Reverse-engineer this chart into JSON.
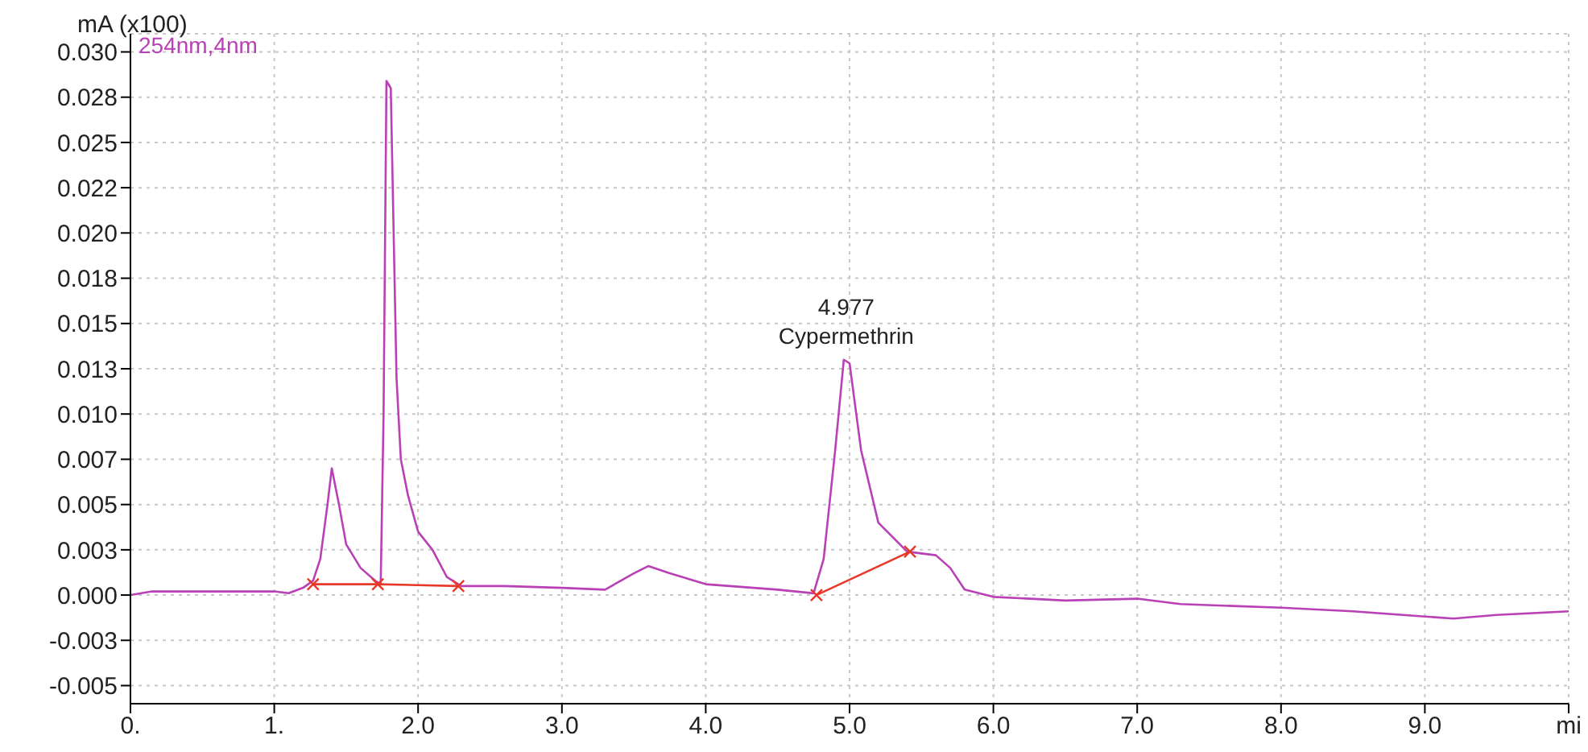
{
  "chart_data": {
    "type": "line",
    "ylabel": "mA (x100)",
    "annotations": [
      {
        "text": "4.977",
        "x": 4.977,
        "y": 0.013
      },
      {
        "text": "Cypermethrin",
        "x": 4.977,
        "y": 0.013
      }
    ],
    "xlim": [
      0,
      10
    ],
    "xticks": [
      {
        "value": 0,
        "label": "0."
      },
      {
        "value": 1,
        "label": "1."
      },
      {
        "value": 2,
        "label": "2.0"
      },
      {
        "value": 3,
        "label": "3.0"
      },
      {
        "value": 4,
        "label": "4.0"
      },
      {
        "value": 5,
        "label": "5.0"
      },
      {
        "value": 6,
        "label": "6.0"
      },
      {
        "value": 7,
        "label": "7.0"
      },
      {
        "value": 8,
        "label": "8.0"
      },
      {
        "value": 9,
        "label": "9.0"
      },
      {
        "value": 10,
        "label": "mi"
      }
    ],
    "ylim": [
      -0.006,
      0.031
    ],
    "yticks": [
      {
        "value": -0.005,
        "label": "-0.005"
      },
      {
        "value": -0.0025,
        "label": "-0.003"
      },
      {
        "value": 0,
        "label": "0.000"
      },
      {
        "value": 0.0025,
        "label": "0.003"
      },
      {
        "value": 0.005,
        "label": "0.005"
      },
      {
        "value": 0.0075,
        "label": "0.007"
      },
      {
        "value": 0.01,
        "label": "0.010"
      },
      {
        "value": 0.0125,
        "label": "0.013"
      },
      {
        "value": 0.015,
        "label": "0.015"
      },
      {
        "value": 0.0175,
        "label": "0.018"
      },
      {
        "value": 0.02,
        "label": "0.020"
      },
      {
        "value": 0.0225,
        "label": "0.022"
      },
      {
        "value": 0.025,
        "label": "0.025"
      },
      {
        "value": 0.0275,
        "label": "0.028"
      },
      {
        "value": 0.03,
        "label": "0.030"
      }
    ],
    "grid": true,
    "legend": "top left",
    "line_style": "solid",
    "series": [
      {
        "name": "254nm,4nm",
        "color": "#b940b5",
        "marker": "none",
        "x": [
          0,
          0.15,
          0.5,
          1.0,
          1.1,
          1.2,
          1.27,
          1.32,
          1.37,
          1.4,
          1.45,
          1.5,
          1.6,
          1.7,
          1.74,
          1.76,
          1.78,
          1.81,
          1.85,
          1.88,
          1.93,
          2.0,
          2.1,
          2.2,
          2.3,
          2.6,
          3.0,
          3.3,
          3.5,
          3.6,
          3.75,
          4.0,
          4.5,
          4.75,
          4.82,
          4.9,
          4.96,
          5.0,
          5.08,
          5.2,
          5.4,
          5.6,
          5.7,
          5.8,
          6.0,
          6.5,
          7.0,
          7.3,
          8.0,
          8.5,
          9.2,
          9.5,
          10
        ],
        "values": [
          0,
          0.0002,
          0.0002,
          0.0002,
          0.0001,
          0.0004,
          0.0008,
          0.002,
          0.005,
          0.007,
          0.005,
          0.0028,
          0.0015,
          0.0008,
          0.0006,
          0.01,
          0.0284,
          0.028,
          0.012,
          0.0075,
          0.0055,
          0.0035,
          0.0025,
          0.001,
          0.0005,
          0.0005,
          0.0004,
          0.0003,
          0.0012,
          0.0016,
          0.0012,
          0.0006,
          0.0003,
          0.0001,
          0.002,
          0.008,
          0.013,
          0.0128,
          0.008,
          0.004,
          0.0024,
          0.0022,
          0.0015,
          0.0003,
          -0.0001,
          -0.0003,
          -0.0002,
          -0.0005,
          -0.0007,
          -0.0009,
          -0.0013,
          -0.0011,
          -0.0009
        ]
      },
      {
        "color": "#e8382a",
        "marker": "cross",
        "x": [
          1.27,
          1.72,
          2.28,
          3.5,
          4.77,
          5.42
        ],
        "values": [
          0.0006,
          0.0006,
          0.0005,
          null,
          0.0,
          0.0024
        ]
      }
    ]
  }
}
